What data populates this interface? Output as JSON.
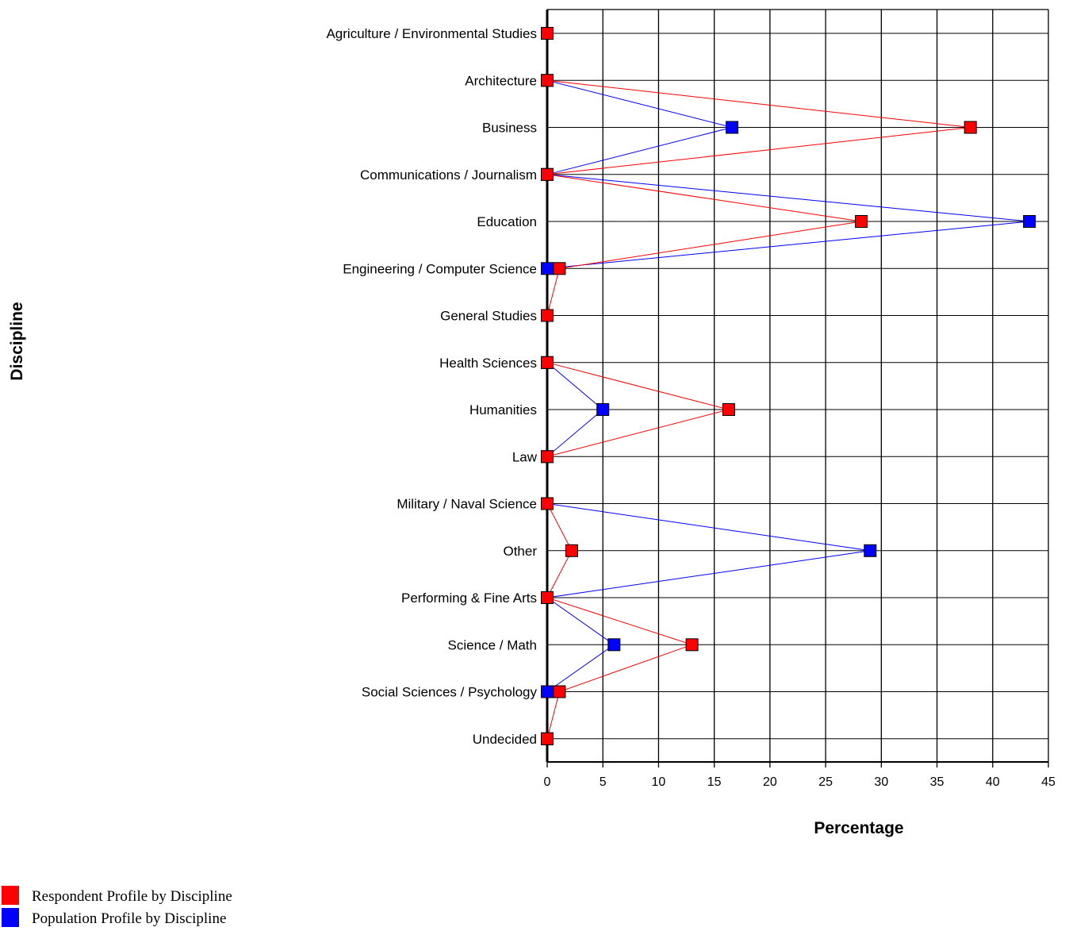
{
  "chart_data": {
    "type": "line",
    "orientation": "horizontal",
    "xlabel": "Percentage",
    "ylabel": "Discipline",
    "xlim": [
      0,
      45
    ],
    "xticks": [
      0,
      5,
      10,
      15,
      20,
      25,
      30,
      35,
      40,
      45
    ],
    "grid": true,
    "legend_position": "bottom-left",
    "categories": [
      "Agriculture / Environmental Studies",
      "Architecture",
      "Business",
      "Communications / Journalism",
      "Education",
      "Engineering / Computer Science",
      "General Studies",
      "Health Sciences",
      "Humanities",
      "Law",
      "Military / Naval Science",
      "Other",
      "Performing & Fine Arts",
      "Science / Math",
      "Social Sciences / Psychology",
      "Undecided"
    ],
    "series": [
      {
        "name": "Population Profile by Discipline",
        "color": "#0000ff",
        "values": [
          0,
          0,
          16.6,
          0,
          43.3,
          0,
          0,
          0,
          5,
          0,
          0,
          29,
          0,
          6,
          0,
          0
        ]
      },
      {
        "name": "Respondent Profile by Discipline",
        "color": "#ff0000",
        "values": [
          0,
          0,
          38,
          0,
          28.2,
          1.1,
          0,
          0,
          16.3,
          0,
          0,
          2.2,
          0,
          13,
          1.1,
          0
        ]
      }
    ],
    "legend": [
      {
        "label": "Respondent Profile by Discipline",
        "color": "#ff0000"
      },
      {
        "label": "Population Profile by Discipline",
        "color": "#0000ff"
      }
    ]
  }
}
